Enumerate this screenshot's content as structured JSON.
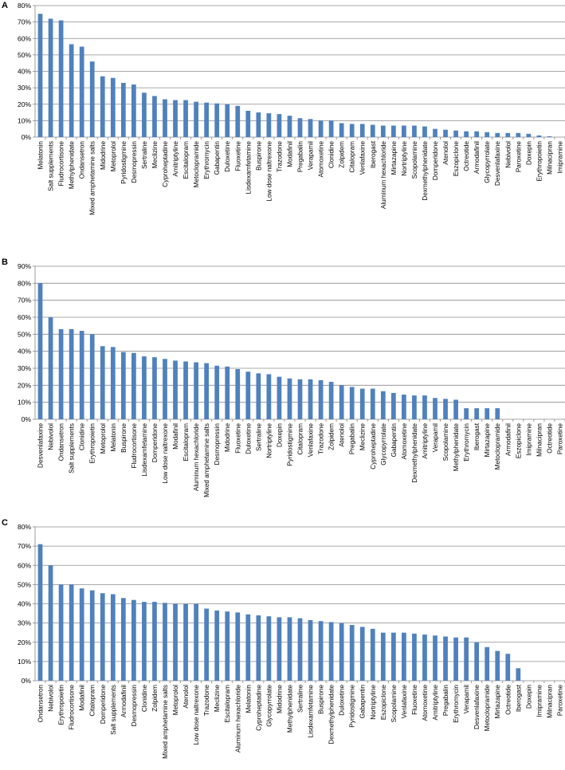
{
  "figure": {
    "bar_color": "#4F81BD",
    "grid_color": "#8C8C8C",
    "axis_color": "#868686"
  },
  "panels": [
    {
      "letter": "A"
    },
    {
      "letter": "B"
    },
    {
      "letter": "C"
    }
  ],
  "chart_data": [
    {
      "type": "bar",
      "panel": "A",
      "ylim": [
        0,
        80
      ],
      "y_ticks": [
        "0%",
        "10%",
        "20%",
        "30%",
        "40%",
        "50%",
        "60%",
        "70%",
        "80%"
      ],
      "grid": true,
      "categories": [
        "Melatonin",
        "Salt supplements",
        "Fludrocortisone",
        "Methylphenidate",
        "Ondansetron",
        "Mixed amphetamine salts",
        "Midodrine",
        "Metoprolol",
        "Pyridostigmine",
        "Desmopressin",
        "Sertraline",
        "Meclizine",
        "Cyproheptadine",
        "Amitriptyline",
        "Escitalopram",
        "Metoclopramide",
        "Erythromycin",
        "Gabapentin",
        "Duloxetine",
        "Fluoxetine",
        "Lisdexamfetamine",
        "Buspirone",
        "Low dose naltrexone",
        "Trazodone",
        "Modafinil",
        "Pregabalin",
        "Verapamil",
        "Atomoxetine",
        "Clonidine",
        "Zolpidem",
        "Citalopram",
        "Venlafaxine",
        "Iberogast",
        "Aluminum hexachloride",
        "Mirtazapine",
        "Nortriptyline",
        "Scopolamine",
        "Dexmethylphenidate",
        "Domperidone",
        "Atenolol",
        "Eszopiclone",
        "Octreotide",
        "Armodafinil",
        "Glycopyrrolate",
        "Desvenlafaxine",
        "Nebivolol",
        "Paroxetine",
        "Doxepin",
        "Erythropoietin",
        "Milnacipran",
        "Imipramine"
      ],
      "values": [
        75,
        72,
        71,
        56.5,
        55,
        46,
        37,
        36,
        33,
        32,
        27,
        25,
        23,
        22.5,
        22.5,
        21.5,
        21,
        20.5,
        20,
        19,
        16,
        15,
        14.5,
        14,
        13,
        11.5,
        11,
        10,
        10,
        8.5,
        8,
        8,
        7.5,
        7,
        7,
        7,
        7,
        6.5,
        5,
        4.5,
        4,
        3.5,
        3.5,
        3,
        2.5,
        2.5,
        2.5,
        2,
        1,
        0.5,
        0
      ]
    },
    {
      "type": "bar",
      "panel": "B",
      "ylim": [
        0,
        90
      ],
      "y_ticks": [
        "0%",
        "10%",
        "20%",
        "30%",
        "40%",
        "50%",
        "60%",
        "70%",
        "80%",
        "90%"
      ],
      "grid": true,
      "categories": [
        "Desvenlafaxine",
        "Nebivolol",
        "Ondansetron",
        "Salt supplements",
        "Clonidine",
        "Erythropoietin",
        "Metoprolol",
        "Melatonin",
        "Buspirone",
        "Fludrocortisone",
        "Lisdexamfetamine",
        "Domperidone",
        "Low dose naltrexone",
        "Modafinil",
        "Escitalopram",
        "Aluminum hexachloride",
        "Mixed amphetamine salts",
        "Desmopressin",
        "Midodrine",
        "Fluoxetine",
        "Duloxetine",
        "Sertraline",
        "Nortriptyline",
        "Doxepin",
        "Pyridostigmine",
        "Citalopram",
        "Venlafaxine",
        "Trazodone",
        "Zolpidem",
        "Atenolol",
        "Pregabalin",
        "Meclizine",
        "Cyproheptadine",
        "Glycopyrrolate",
        "Gabapentin",
        "Atomoxetine",
        "Dexmethylphenidate",
        "Amitriptyline",
        "Verapamil",
        "Scopolamine",
        "Methylphenidate",
        "Erythromycin",
        "Iberogast",
        "Mirtazapine",
        "Metoclopramide",
        "Armodafinil",
        "Eszopiclone",
        "Imipramine",
        "Milnacipran",
        "Octreotide",
        "Paroxetine"
      ],
      "values": [
        80,
        60,
        53,
        53,
        52,
        50,
        43,
        42.5,
        39.5,
        39,
        37,
        36.5,
        35.5,
        34.5,
        34,
        33.5,
        33,
        31.5,
        31,
        29.5,
        28,
        27,
        26.5,
        25,
        24,
        23.5,
        23.5,
        23,
        22,
        20,
        19,
        18,
        18,
        16.5,
        15.5,
        14.5,
        14,
        14,
        12.5,
        12,
        11.5,
        6.5,
        6.5,
        6.5,
        6.5,
        0,
        0,
        0,
        0,
        0,
        0
      ]
    },
    {
      "type": "bar",
      "panel": "C",
      "ylim": [
        0,
        80
      ],
      "y_ticks": [
        "0%",
        "10%",
        "20%",
        "30%",
        "40%",
        "50%",
        "60%",
        "70%",
        "80%"
      ],
      "grid": true,
      "categories": [
        "Ondansetron",
        "Nebivolol",
        "Erythropoietin",
        "Fludrocortisone",
        "Modafinil",
        "Citalopram",
        "Domperidone",
        "Salt supplements",
        "Armodafinil",
        "Desmopressin",
        "Clonidine",
        "Zolpidem",
        "Mixed amphetamine salts",
        "Metoprolol",
        "Atenolol",
        "Low dose naltrexone",
        "Trazodone",
        "Meclizine",
        "Escitalopram",
        "Aluminum hexachloride",
        "Melatonin",
        "Cyproheptadine",
        "Glycopyrrolate",
        "Midodrine",
        "Methylphenidate",
        "Sertraline",
        "Lisdexamfetamine",
        "Buspirone",
        "Dexmethylphenidate",
        "Duloxetine",
        "Pyridostigmine",
        "Gabapentin",
        "Nortriptyline",
        "Eszopiclone",
        "Scopolamine",
        "Venlafaxine",
        "Fluoxetine",
        "Atomoxetine",
        "Amitriptyline",
        "Pregabalin",
        "Erythromycin",
        "Verapamil",
        "Desvenlafaxine",
        "Metoclopramide",
        "Mirtazapine",
        "Octreotide",
        "Iberogast",
        "Doxepin",
        "Imipramine",
        "Milnacipran",
        "Paroxetine"
      ],
      "values": [
        71,
        60,
        50,
        50,
        48,
        47,
        45.5,
        45,
        43,
        42,
        41,
        41,
        40.5,
        40,
        40,
        40,
        37.5,
        36.5,
        36,
        35.5,
        34.5,
        34,
        33.5,
        33,
        33,
        32.5,
        31.5,
        31,
        30.5,
        30,
        29,
        28,
        27,
        25,
        25,
        25,
        24.5,
        24,
        23.5,
        23,
        22.5,
        22.5,
        20,
        17.5,
        15.5,
        14,
        6.5,
        0,
        0,
        0,
        0
      ]
    }
  ]
}
